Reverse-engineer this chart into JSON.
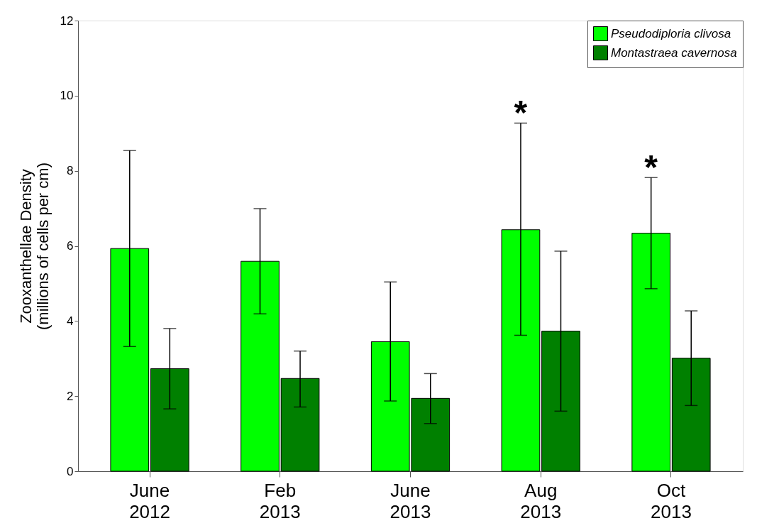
{
  "chart_data": {
    "type": "bar",
    "ylabel": "Zooxanthellae Density\n(millions of cells per cm)",
    "categories": [
      "June 2012",
      "Feb 2013",
      "June 2013",
      "Aug 2013",
      "Oct 2013"
    ],
    "series": [
      {
        "name": "Pseudodiploria clivosa",
        "color": "#00ff00",
        "values": [
          5.93,
          5.59,
          3.45,
          6.43,
          6.34
        ],
        "value_labels": [
          null,
          null,
          null,
          "*",
          "*"
        ],
        "errors": [
          [
            3.32,
            8.54
          ],
          [
            4.19,
            6.99
          ],
          [
            1.87,
            5.04
          ],
          [
            3.62,
            9.27
          ],
          [
            4.86,
            7.82
          ]
        ]
      },
      {
        "name": "Montastraea cavernosa",
        "color": "#008000",
        "values": [
          2.73,
          2.47,
          1.94,
          3.73,
          3.01
        ],
        "errors": [
          [
            1.66,
            3.8
          ],
          [
            1.71,
            3.2
          ],
          [
            1.27,
            2.6
          ],
          [
            1.6,
            5.86
          ],
          [
            1.75,
            4.27
          ]
        ]
      }
    ],
    "ylim": [
      0,
      12
    ],
    "yticks": [
      0,
      2,
      4,
      6,
      8,
      10,
      12
    ],
    "legend": "top right",
    "grid": false
  }
}
